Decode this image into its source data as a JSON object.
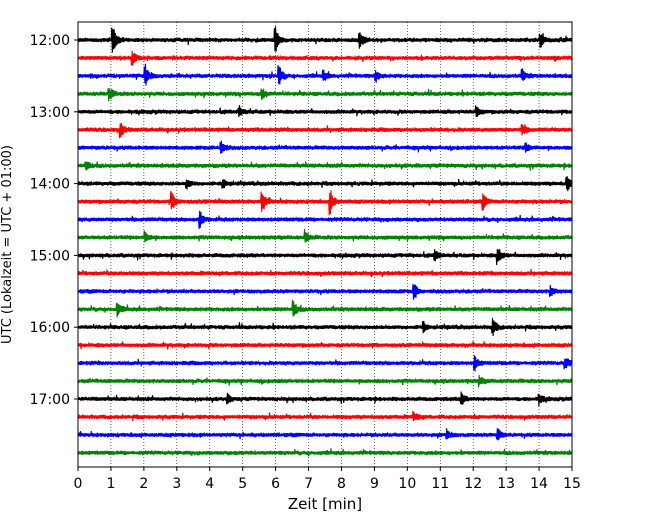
{
  "chart_data": {
    "type": "line",
    "subtype": "helicorder",
    "title": "",
    "xlabel": "Zeit  [min]",
    "ylabel": "UTC (Lokalzeit = UTC + 01:00)",
    "xlim": [
      0,
      15
    ],
    "x_ticks": [
      "0",
      "1",
      "2",
      "3",
      "4",
      "5",
      "6",
      "7",
      "8",
      "9",
      "10",
      "11",
      "12",
      "13",
      "14",
      "15"
    ],
    "y_tick_labels": [
      "12:00",
      "13:00",
      "14:00",
      "15:00",
      "16:00",
      "17:00"
    ],
    "y_tick_rows": [
      0,
      4,
      8,
      12,
      16,
      20
    ],
    "row_start_times": [
      "12:00",
      "12:15",
      "12:30",
      "12:45",
      "13:00",
      "13:15",
      "13:30",
      "13:45",
      "14:00",
      "14:15",
      "14:30",
      "14:45",
      "15:00",
      "15:15",
      "15:30",
      "15:45",
      "16:00",
      "16:15",
      "16:30",
      "16:45",
      "17:00",
      "17:15",
      "17:30",
      "17:45"
    ],
    "row_colors": [
      "#000000",
      "#ff0000",
      "#0000ff",
      "#008000"
    ],
    "vertical_grid": "dotted",
    "events": [
      {
        "row": 0,
        "x": 1.05,
        "amp": 1.6
      },
      {
        "row": 0,
        "x": 6.0,
        "amp": 1.2
      },
      {
        "row": 0,
        "x": 8.55,
        "amp": 1.0
      },
      {
        "row": 0,
        "x": 14.05,
        "amp": 0.6
      },
      {
        "row": 1,
        "x": 1.65,
        "amp": 0.7
      },
      {
        "row": 2,
        "x": 2.05,
        "amp": 1.0
      },
      {
        "row": 2,
        "x": 6.1,
        "amp": 1.0
      },
      {
        "row": 2,
        "x": 7.45,
        "amp": 0.5
      },
      {
        "row": 2,
        "x": 9.05,
        "amp": 0.6
      },
      {
        "row": 2,
        "x": 13.5,
        "amp": 0.5
      },
      {
        "row": 3,
        "x": 0.95,
        "amp": 0.6
      },
      {
        "row": 3,
        "x": 5.6,
        "amp": 0.5
      },
      {
        "row": 4,
        "x": 4.9,
        "amp": 0.5
      },
      {
        "row": 4,
        "x": 12.1,
        "amp": 0.5
      },
      {
        "row": 5,
        "x": 1.3,
        "amp": 0.7
      },
      {
        "row": 5,
        "x": 13.5,
        "amp": 0.5
      },
      {
        "row": 6,
        "x": 4.35,
        "amp": 0.7
      },
      {
        "row": 6,
        "x": 13.6,
        "amp": 0.4
      },
      {
        "row": 7,
        "x": 0.25,
        "amp": 0.5
      },
      {
        "row": 8,
        "x": 3.3,
        "amp": 0.5
      },
      {
        "row": 8,
        "x": 4.4,
        "amp": 0.5
      },
      {
        "row": 8,
        "x": 14.85,
        "amp": 0.8
      },
      {
        "row": 9,
        "x": 2.85,
        "amp": 0.9
      },
      {
        "row": 9,
        "x": 5.6,
        "amp": 1.0
      },
      {
        "row": 9,
        "x": 7.65,
        "amp": 1.3
      },
      {
        "row": 9,
        "x": 12.3,
        "amp": 0.7
      },
      {
        "row": 10,
        "x": 3.7,
        "amp": 0.9
      },
      {
        "row": 11,
        "x": 2.05,
        "amp": 0.5
      },
      {
        "row": 11,
        "x": 6.9,
        "amp": 0.6
      },
      {
        "row": 12,
        "x": 10.85,
        "amp": 0.5
      },
      {
        "row": 12,
        "x": 12.75,
        "amp": 0.8
      },
      {
        "row": 14,
        "x": 10.2,
        "amp": 0.9
      },
      {
        "row": 14,
        "x": 14.35,
        "amp": 0.5
      },
      {
        "row": 15,
        "x": 1.2,
        "amp": 0.6
      },
      {
        "row": 15,
        "x": 6.55,
        "amp": 0.8
      },
      {
        "row": 16,
        "x": 10.5,
        "amp": 0.5
      },
      {
        "row": 16,
        "x": 12.6,
        "amp": 0.8
      },
      {
        "row": 18,
        "x": 12.05,
        "amp": 0.7
      },
      {
        "row": 18,
        "x": 14.8,
        "amp": 0.6
      },
      {
        "row": 19,
        "x": 12.2,
        "amp": 0.4
      },
      {
        "row": 20,
        "x": 4.55,
        "amp": 0.4
      },
      {
        "row": 20,
        "x": 11.65,
        "amp": 0.6
      },
      {
        "row": 20,
        "x": 14.0,
        "amp": 0.5
      },
      {
        "row": 21,
        "x": 10.2,
        "amp": 0.5
      },
      {
        "row": 22,
        "x": 11.2,
        "amp": 0.5
      },
      {
        "row": 22,
        "x": 12.75,
        "amp": 0.6
      }
    ]
  }
}
